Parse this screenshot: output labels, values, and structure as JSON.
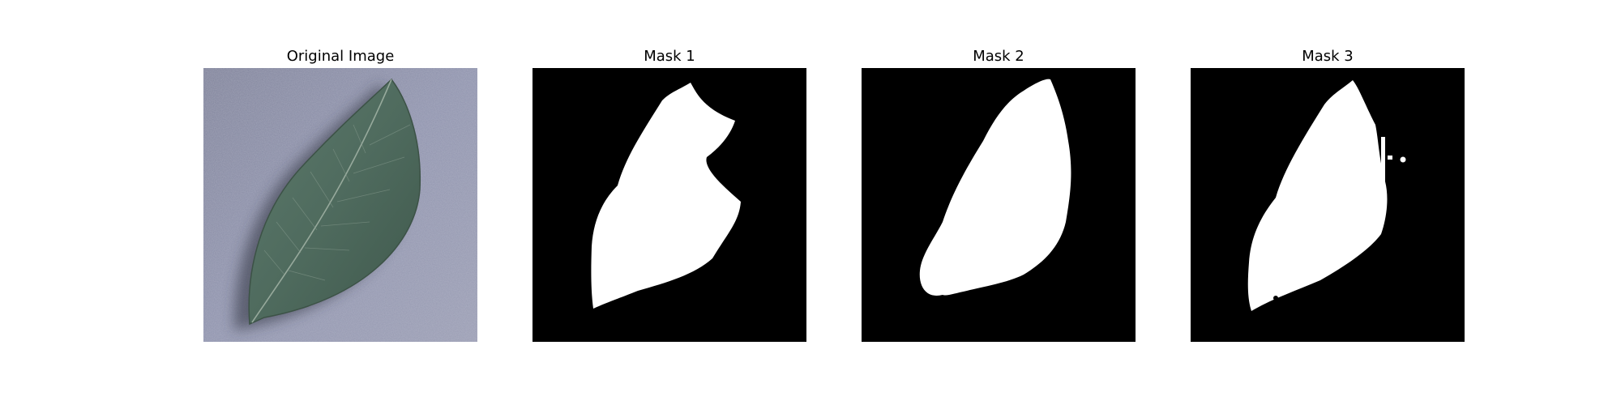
{
  "figure": {
    "panels": [
      {
        "title": "Original Image"
      },
      {
        "title": "Mask 1"
      },
      {
        "title": "Mask 2"
      },
      {
        "title": "Mask 3"
      }
    ]
  },
  "colors": {
    "mask_background": "#000000",
    "mask_foreground": "#ffffff",
    "leaf": "#4e6a5c",
    "surface": "#8a8ea8"
  }
}
